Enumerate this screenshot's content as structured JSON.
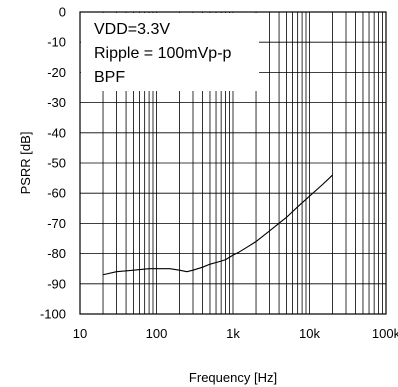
{
  "chart_data": {
    "type": "line",
    "xlabel": "Frequency [Hz]",
    "ylabel": "PSRR [dB]",
    "xscale": "log",
    "xlim": [
      10,
      100000
    ],
    "ylim": [
      -100,
      0
    ],
    "grid": true,
    "x_tick_labels": [
      "10",
      "100",
      "1k",
      "10k",
      "100k"
    ],
    "y_tick_labels": [
      "0",
      "-10",
      "-20",
      "-30",
      "-40",
      "-50",
      "-60",
      "-70",
      "-80",
      "-90",
      "-100"
    ],
    "annotations": [
      "VDD=3.3V",
      "Ripple = 100mVp-p",
      "BPF"
    ],
    "series": [
      {
        "color": "#000000",
        "x": [
          20,
          30,
          50,
          80,
          100,
          150,
          200,
          250,
          300,
          400,
          500,
          700,
          800,
          1000,
          1200,
          1500,
          2000,
          3000,
          5000,
          7000,
          10000,
          15000,
          20000
        ],
        "y": [
          -87,
          -86,
          -85.5,
          -85,
          -85,
          -85,
          -85.5,
          -86,
          -85.5,
          -84.5,
          -83.5,
          -82.5,
          -82,
          -80.5,
          -79.5,
          -78,
          -76,
          -72.5,
          -68,
          -64.5,
          -61,
          -57,
          -54
        ]
      }
    ]
  }
}
